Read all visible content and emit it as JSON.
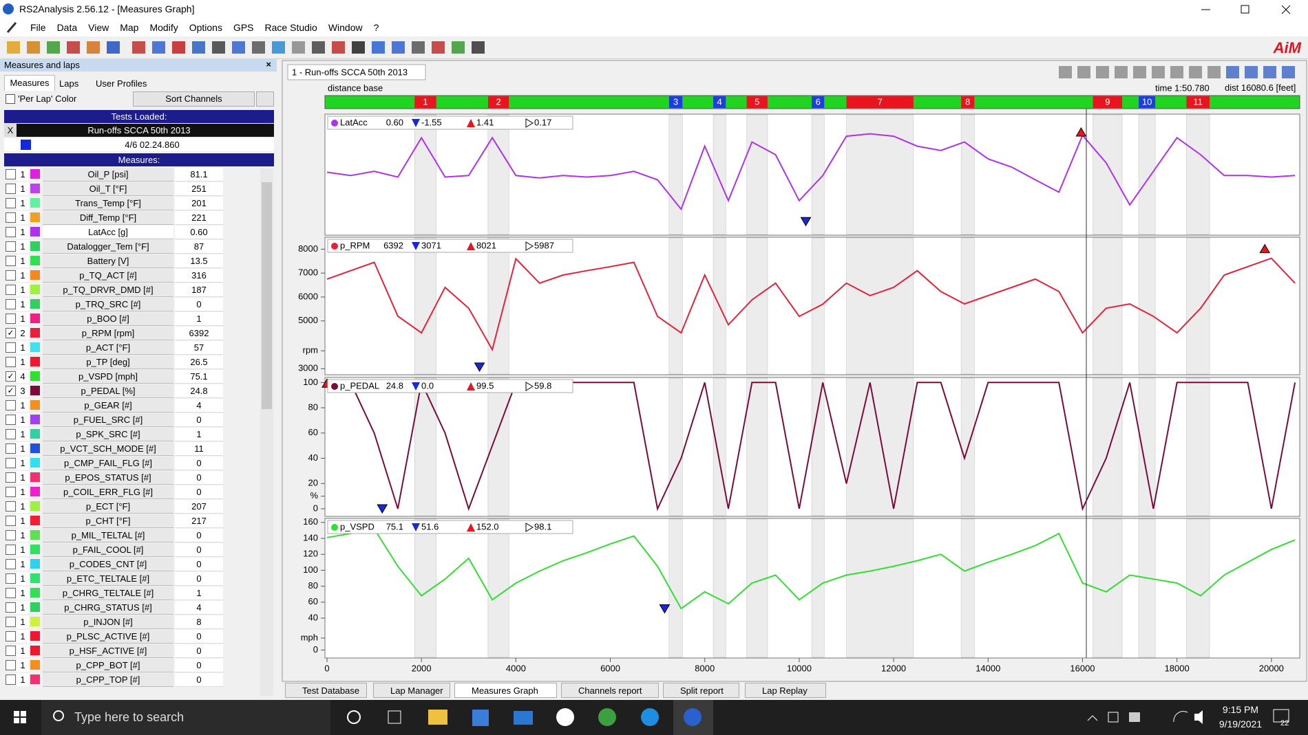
{
  "window": {
    "title": "RS2Analysis 2.56.12 - [Measures Graph]",
    "menu": [
      "File",
      "Data",
      "View",
      "Map",
      "Modify",
      "Options",
      "GPS",
      "Race Studio",
      "Window",
      "?"
    ],
    "logo": "AiM"
  },
  "left_panel": {
    "header": "Measures and laps",
    "tabs": [
      "Measures",
      "Laps",
      "User Profiles"
    ],
    "per_lap": "'Per Lap' Color",
    "sort": "Sort Channels",
    "tests_loaded": "Tests Loaded:",
    "test_close": "X",
    "test_name": "Run-offs SCCA 50th 2013",
    "lap": "4/6 02.24.860",
    "measures": "Measures:",
    "rows": [
      {
        "checked": false,
        "num": "1",
        "color": "#e020e0",
        "name": "Oil_P   [psi]",
        "value": "81.1"
      },
      {
        "checked": false,
        "num": "1",
        "color": "#c040f0",
        "name": "Oil_T   [°F]",
        "value": "251"
      },
      {
        "checked": false,
        "num": "1",
        "color": "#60f0a0",
        "name": "Trans_Temp   [°F]",
        "value": "201"
      },
      {
        "checked": false,
        "num": "1",
        "color": "#f0a020",
        "name": "Diff_Temp   [°F]",
        "value": "221"
      },
      {
        "checked": false,
        "num": "1",
        "color": "#b030f0",
        "name": "LatAcc   [g]",
        "value": "0.60"
      },
      {
        "checked": false,
        "num": "1",
        "color": "#30d060",
        "name": "Datalogger_Tem   [°F]",
        "value": "87"
      },
      {
        "checked": false,
        "num": "1",
        "color": "#30e050",
        "name": "Battery   [V]",
        "value": "13.5"
      },
      {
        "checked": false,
        "num": "1",
        "color": "#f08a20",
        "name": "p_TQ_ACT   [#]",
        "value": "316"
      },
      {
        "checked": false,
        "num": "1",
        "color": "#a0f040",
        "name": "p_TQ_DRVR_DMD   [#]",
        "value": "187"
      },
      {
        "checked": false,
        "num": "1",
        "color": "#30d060",
        "name": "p_TRQ_SRC   [#]",
        "value": "0"
      },
      {
        "checked": false,
        "num": "1",
        "color": "#f02080",
        "name": "p_BOO   [#]",
        "value": "1"
      },
      {
        "checked": true,
        "num": "2",
        "color": "#e8203a",
        "name": "p_RPM   [rpm]",
        "value": "6392"
      },
      {
        "checked": false,
        "num": "1",
        "color": "#40e0f0",
        "name": "p_ACT   [°F]",
        "value": "57"
      },
      {
        "checked": false,
        "num": "1",
        "color": "#f01830",
        "name": "p_TP   [deg]",
        "value": "26.5"
      },
      {
        "checked": true,
        "num": "4",
        "color": "#30e030",
        "name": "p_VSPD   [mph]",
        "value": "75.1"
      },
      {
        "checked": true,
        "num": "3",
        "color": "#7a0a3a",
        "name": "p_PEDAL   [%]",
        "value": "24.8"
      },
      {
        "checked": false,
        "num": "1",
        "color": "#f09020",
        "name": "p_GEAR   [#]",
        "value": "4"
      },
      {
        "checked": false,
        "num": "1",
        "color": "#a040f0",
        "name": "p_FUEL_SRC   [#]",
        "value": "0"
      },
      {
        "checked": false,
        "num": "1",
        "color": "#30d0a0",
        "name": "p_SPK_SRC   [#]",
        "value": "1"
      },
      {
        "checked": false,
        "num": "1",
        "color": "#2050e0",
        "name": "p_VCT_SCH_MODE   [#]",
        "value": "11"
      },
      {
        "checked": false,
        "num": "1",
        "color": "#30e0f0",
        "name": "p_CMP_FAIL_FLG   [#]",
        "value": "0"
      },
      {
        "checked": false,
        "num": "1",
        "color": "#f03070",
        "name": "p_EPOS_STATUS   [#]",
        "value": "0"
      },
      {
        "checked": false,
        "num": "1",
        "color": "#f020d0",
        "name": "p_COIL_ERR_FLG   [#]",
        "value": "0"
      },
      {
        "checked": false,
        "num": "1",
        "color": "#a0f040",
        "name": "p_ECT   [°F]",
        "value": "207"
      },
      {
        "checked": false,
        "num": "1",
        "color": "#f02030",
        "name": "p_CHT   [°F]",
        "value": "217"
      },
      {
        "checked": false,
        "num": "1",
        "color": "#60e050",
        "name": "p_MIL_TELTAL   [#]",
        "value": "0"
      },
      {
        "checked": false,
        "num": "1",
        "color": "#30e060",
        "name": "p_FAIL_COOL   [#]",
        "value": "0"
      },
      {
        "checked": false,
        "num": "1",
        "color": "#30d0f0",
        "name": "p_CODES_CNT   [#]",
        "value": "0"
      },
      {
        "checked": false,
        "num": "1",
        "color": "#30e070",
        "name": "p_ETC_TELTALE   [#]",
        "value": "0"
      },
      {
        "checked": false,
        "num": "1",
        "color": "#30e050",
        "name": "p_CHRG_TELTALE   [#]",
        "value": "1"
      },
      {
        "checked": false,
        "num": "1",
        "color": "#30d060",
        "name": "p_CHRG_STATUS   [#]",
        "value": "4"
      },
      {
        "checked": false,
        "num": "1",
        "color": "#d0f040",
        "name": "p_INJON   [#]",
        "value": "8"
      },
      {
        "checked": false,
        "num": "1",
        "color": "#f01830",
        "name": "p_PLSC_ACTIVE   [#]",
        "value": "0"
      },
      {
        "checked": false,
        "num": "1",
        "color": "#f01830",
        "name": "p_HSF_ACTIVE   [#]",
        "value": "0"
      },
      {
        "checked": false,
        "num": "1",
        "color": "#f09020",
        "name": "p_CPP_BOT   [#]",
        "value": "0"
      },
      {
        "checked": false,
        "num": "1",
        "color": "#f03070",
        "name": "p_CPP_TOP   [#]",
        "value": "0"
      }
    ]
  },
  "graph": {
    "tab": "1 - Run-offs SCCA 50th 2013",
    "distance_label": "distance base",
    "time": "time 1:50.780",
    "dist_label": "dist",
    "dist": 16080.6,
    "dist_unit": "[feet]",
    "xlim": [
      0,
      20600
    ],
    "xticks": [
      0,
      2000,
      4000,
      6000,
      8000,
      10000,
      12000,
      14000,
      16000,
      18000,
      20000
    ],
    "sectors": [
      {
        "label": "1",
        "color": "#e8141e",
        "start": 1855,
        "end": 2314
      },
      {
        "label": "2",
        "color": "#e8141e",
        "start": 3410,
        "end": 3852
      },
      {
        "label": "3",
        "color": "#1a3ee0",
        "start": 7244,
        "end": 7527
      },
      {
        "label": "4",
        "color": "#1a3ee0",
        "start": 8180,
        "end": 8445
      },
      {
        "label": "5",
        "color": "#e8141e",
        "start": 8887,
        "end": 9329
      },
      {
        "label": "6",
        "color": "#1a3ee0",
        "start": 10265,
        "end": 10530
      },
      {
        "label": "7",
        "color": "#e8141e",
        "start": 11000,
        "end": 12420
      },
      {
        "label": "8",
        "color": "#e8141e",
        "start": 13430,
        "end": 13710
      },
      {
        "label": "9",
        "color": "#e8141e",
        "start": 16220,
        "end": 16840
      },
      {
        "label": "10",
        "color": "#1a3ee0",
        "start": 17190,
        "end": 17540
      },
      {
        "label": "11",
        "color": "#e8141e",
        "start": 18200,
        "end": 18690
      }
    ],
    "x": [
      0,
      500,
      1000,
      1500,
      2000,
      2500,
      3000,
      3500,
      4000,
      4500,
      5000,
      5500,
      6000,
      6500,
      7000,
      7500,
      8000,
      8500,
      9000,
      9500,
      10000,
      10500,
      11000,
      11500,
      12000,
      12500,
      13000,
      13500,
      14000,
      14500,
      15000,
      15500,
      16000,
      16500,
      17000,
      17500,
      18000,
      18500,
      19000,
      19500,
      20000,
      20500
    ],
    "panels": [
      {
        "name": "LatAcc",
        "color": "#b030f0",
        "current": {
          "value": 0.6,
          "label": "0.60"
        },
        "min": -1.55,
        "max": 1.41,
        "delta": 0.17,
        "min_x": 10140,
        "max_x": 15970,
        "ylim": [
          -2,
          2
        ],
        "values": [
          0.08,
          -0.03,
          0.11,
          -0.08,
          1.22,
          -0.08,
          -0.03,
          1.22,
          -0.03,
          -0.11,
          -0.03,
          -0.08,
          -0.03,
          0.11,
          -0.17,
          -1.14,
          0.94,
          -0.86,
          1.08,
          0.66,
          -0.86,
          -0.03,
          1.27,
          1.35,
          1.27,
          0.94,
          0.8,
          1.08,
          0.52,
          0.25,
          -0.17,
          -0.58,
          1.3,
          0.39,
          -1.0,
          0.11,
          1.22,
          0.66,
          -0.03,
          -0.03,
          -0.08,
          -0.03
        ]
      },
      {
        "name": "p_RPM",
        "color": "#e8203a",
        "current": 6392,
        "min": 3071,
        "max": 8021,
        "delta": 5987,
        "min_x": 3230,
        "max_x": 19860,
        "ylim": [
          2750,
          8500
        ],
        "yticks": [
          3000,
          {
            "value": 3750,
            "label": "rpm"
          },
          5000,
          6000,
          7000,
          8000
        ],
        "values": [
          6750,
          7100,
          7450,
          5200,
          4500,
          6400,
          5530,
          3800,
          7600,
          6580,
          6920,
          7100,
          7270,
          7450,
          5190,
          4500,
          6920,
          4840,
          5880,
          6580,
          5190,
          5700,
          6580,
          6060,
          6400,
          7100,
          6230,
          5710,
          6060,
          6400,
          6750,
          6230,
          4500,
          5530,
          5710,
          5190,
          4500,
          5530,
          6920,
          7270,
          7620,
          6580
        ]
      },
      {
        "name": "p_PEDAL",
        "color": "#7a0a3a",
        "current": 24.8,
        "min": {
          "value": 0,
          "label": "0.0"
        },
        "max": 99.5,
        "delta": 59.8,
        "min_x": 1170,
        "max_x": 0,
        "ylim": [
          -6,
          104
        ],
        "yticks": [
          0,
          {
            "value": 10,
            "label": "%"
          },
          20,
          40,
          60,
          80,
          100
        ],
        "values": [
          100,
          100,
          60,
          0,
          100,
          60,
          0,
          50,
          100,
          100,
          100,
          100,
          100,
          100,
          0,
          40,
          100,
          0,
          100,
          100,
          0,
          100,
          20,
          100,
          0,
          100,
          100,
          40,
          100,
          100,
          100,
          100,
          0,
          40,
          100,
          0,
          100,
          100,
          100,
          100,
          0,
          100
        ]
      },
      {
        "name": "p_VSPD",
        "color": "#30e030",
        "current": 75.1,
        "min": 51.6,
        "max": {
          "value": 152,
          "label": "152.0"
        },
        "delta": 98.1,
        "min_x": 7150,
        "ylim": [
          -10,
          165
        ],
        "yticks": [
          0,
          {
            "value": 15,
            "label": "mph"
          },
          40,
          60,
          80,
          100,
          120,
          140,
          160
        ],
        "values": [
          141,
          146,
          152,
          105,
          68,
          89,
          115,
          63,
          84,
          99,
          112,
          122,
          133,
          143,
          105,
          52,
          73,
          58,
          84,
          94,
          63,
          84,
          94,
          99,
          105,
          112,
          120,
          99,
          110,
          120,
          131,
          146,
          84,
          73,
          94,
          89,
          84,
          68,
          94,
          110,
          126,
          138
        ]
      }
    ]
  },
  "bottom_tabs": [
    "Test Database",
    "Lap Manager",
    "Measures Graph",
    "Channels report",
    "Split report",
    "Lap Replay"
  ],
  "taskbar": {
    "search": "Type here to search",
    "time": "9:15 PM",
    "date": "9/19/2021",
    "badge": "22"
  }
}
